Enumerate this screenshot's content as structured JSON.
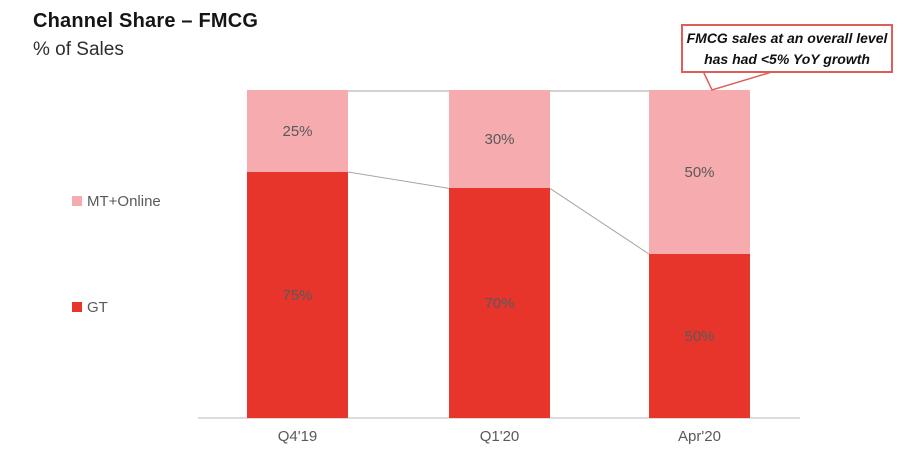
{
  "header": {
    "title": "Channel Share – FMCG",
    "subtitle": "% of Sales"
  },
  "callout": {
    "lines": [
      "FMCG sales at an overall level",
      "has had <5% YoY growth"
    ]
  },
  "legend": {
    "items": [
      {
        "id": "mt_online",
        "label": "MT+Online"
      },
      {
        "id": "gt",
        "label": "GT"
      }
    ]
  },
  "colors": {
    "gt": "#e8352b",
    "mt_online": "#f6acae",
    "segment_label": "#595959",
    "axis_line": "#dcdcdc",
    "connector": "#a6a6a6",
    "callout_border": "#dd5f5b"
  },
  "chart_data": {
    "type": "bar",
    "stacked": true,
    "unit": "%",
    "title": "Channel Share – FMCG",
    "subtitle": "% of Sales",
    "categories": [
      "Q4'19",
      "Q1'20",
      "Apr'20"
    ],
    "series": [
      {
        "name": "GT",
        "color": "#e8352b",
        "values": [
          75,
          70,
          50
        ]
      },
      {
        "name": "MT+Online",
        "color": "#f6acae",
        "values": [
          25,
          30,
          50
        ]
      }
    ],
    "ylim": [
      0,
      100
    ],
    "grid": false,
    "data_labels": true,
    "legend_position": "left",
    "annotation": "FMCG sales at an overall level has had <5% YoY growth"
  }
}
